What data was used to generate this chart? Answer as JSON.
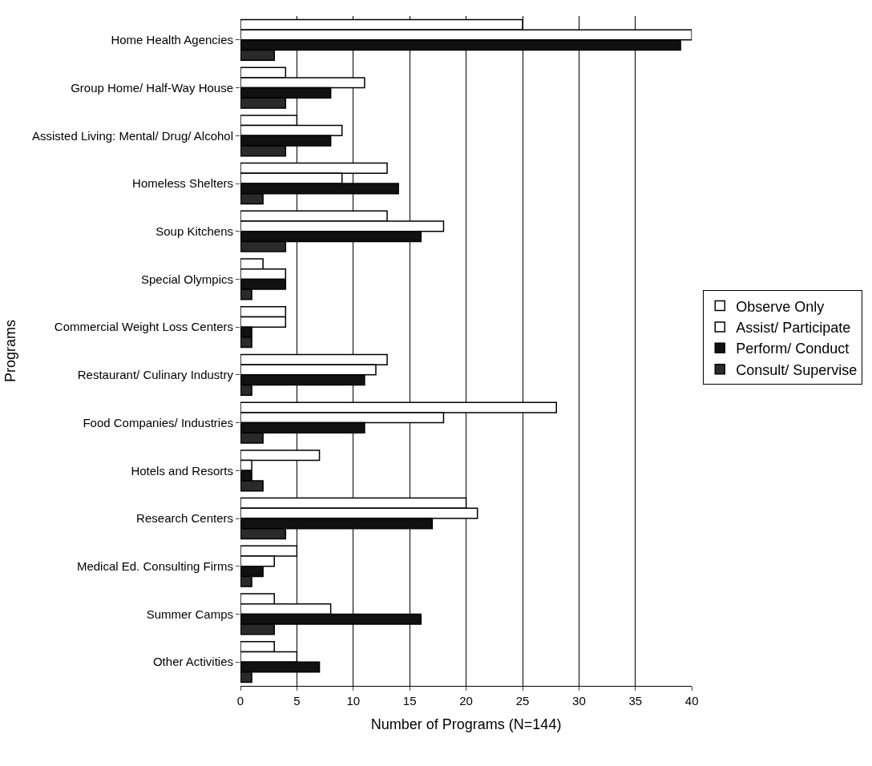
{
  "chart_data": {
    "type": "bar",
    "orientation": "horizontal",
    "xlabel": "Number of Programs (N=144)",
    "ylabel": "Programs",
    "categories": [
      "Home Health Agencies",
      "Group Home/ Half-Way House",
      "Assisted Living: Mental/ Drug/ Alcohol",
      "Homeless Shelters",
      "Soup Kitchens",
      "Special Olympics",
      "Commercial Weight Loss Centers",
      "Restaurant/ Culinary Industry",
      "Food Companies/ Industries",
      "Hotels and Resorts",
      "Research Centers",
      "Medical Ed. Consulting Firms",
      "Summer Camps",
      "Other Activities"
    ],
    "series": [
      {
        "name": "Observe Only",
        "color": "#ffffff",
        "values": [
          25,
          4,
          5,
          13,
          13,
          2,
          4,
          13,
          28,
          7,
          20,
          5,
          3,
          3
        ]
      },
      {
        "name": "Assist/ Participate",
        "color": "#ffffff",
        "values": [
          40,
          11,
          9,
          9,
          18,
          4,
          4,
          12,
          18,
          1,
          21,
          3,
          8,
          5
        ]
      },
      {
        "name": "Perform/ Conduct",
        "color": "#111111",
        "values": [
          39,
          8,
          8,
          14,
          16,
          4,
          1,
          11,
          11,
          1,
          17,
          2,
          16,
          7
        ]
      },
      {
        "name": "Consult/ Supervise",
        "color": "#2a2a2a",
        "values": [
          3,
          4,
          4,
          2,
          4,
          1,
          1,
          1,
          2,
          2,
          4,
          1,
          3,
          1
        ]
      }
    ],
    "xlim": [
      0,
      40
    ],
    "xticks": [
      0,
      5,
      10,
      15,
      20,
      25,
      30,
      35,
      40
    ],
    "grid": "x",
    "legend": "right"
  }
}
